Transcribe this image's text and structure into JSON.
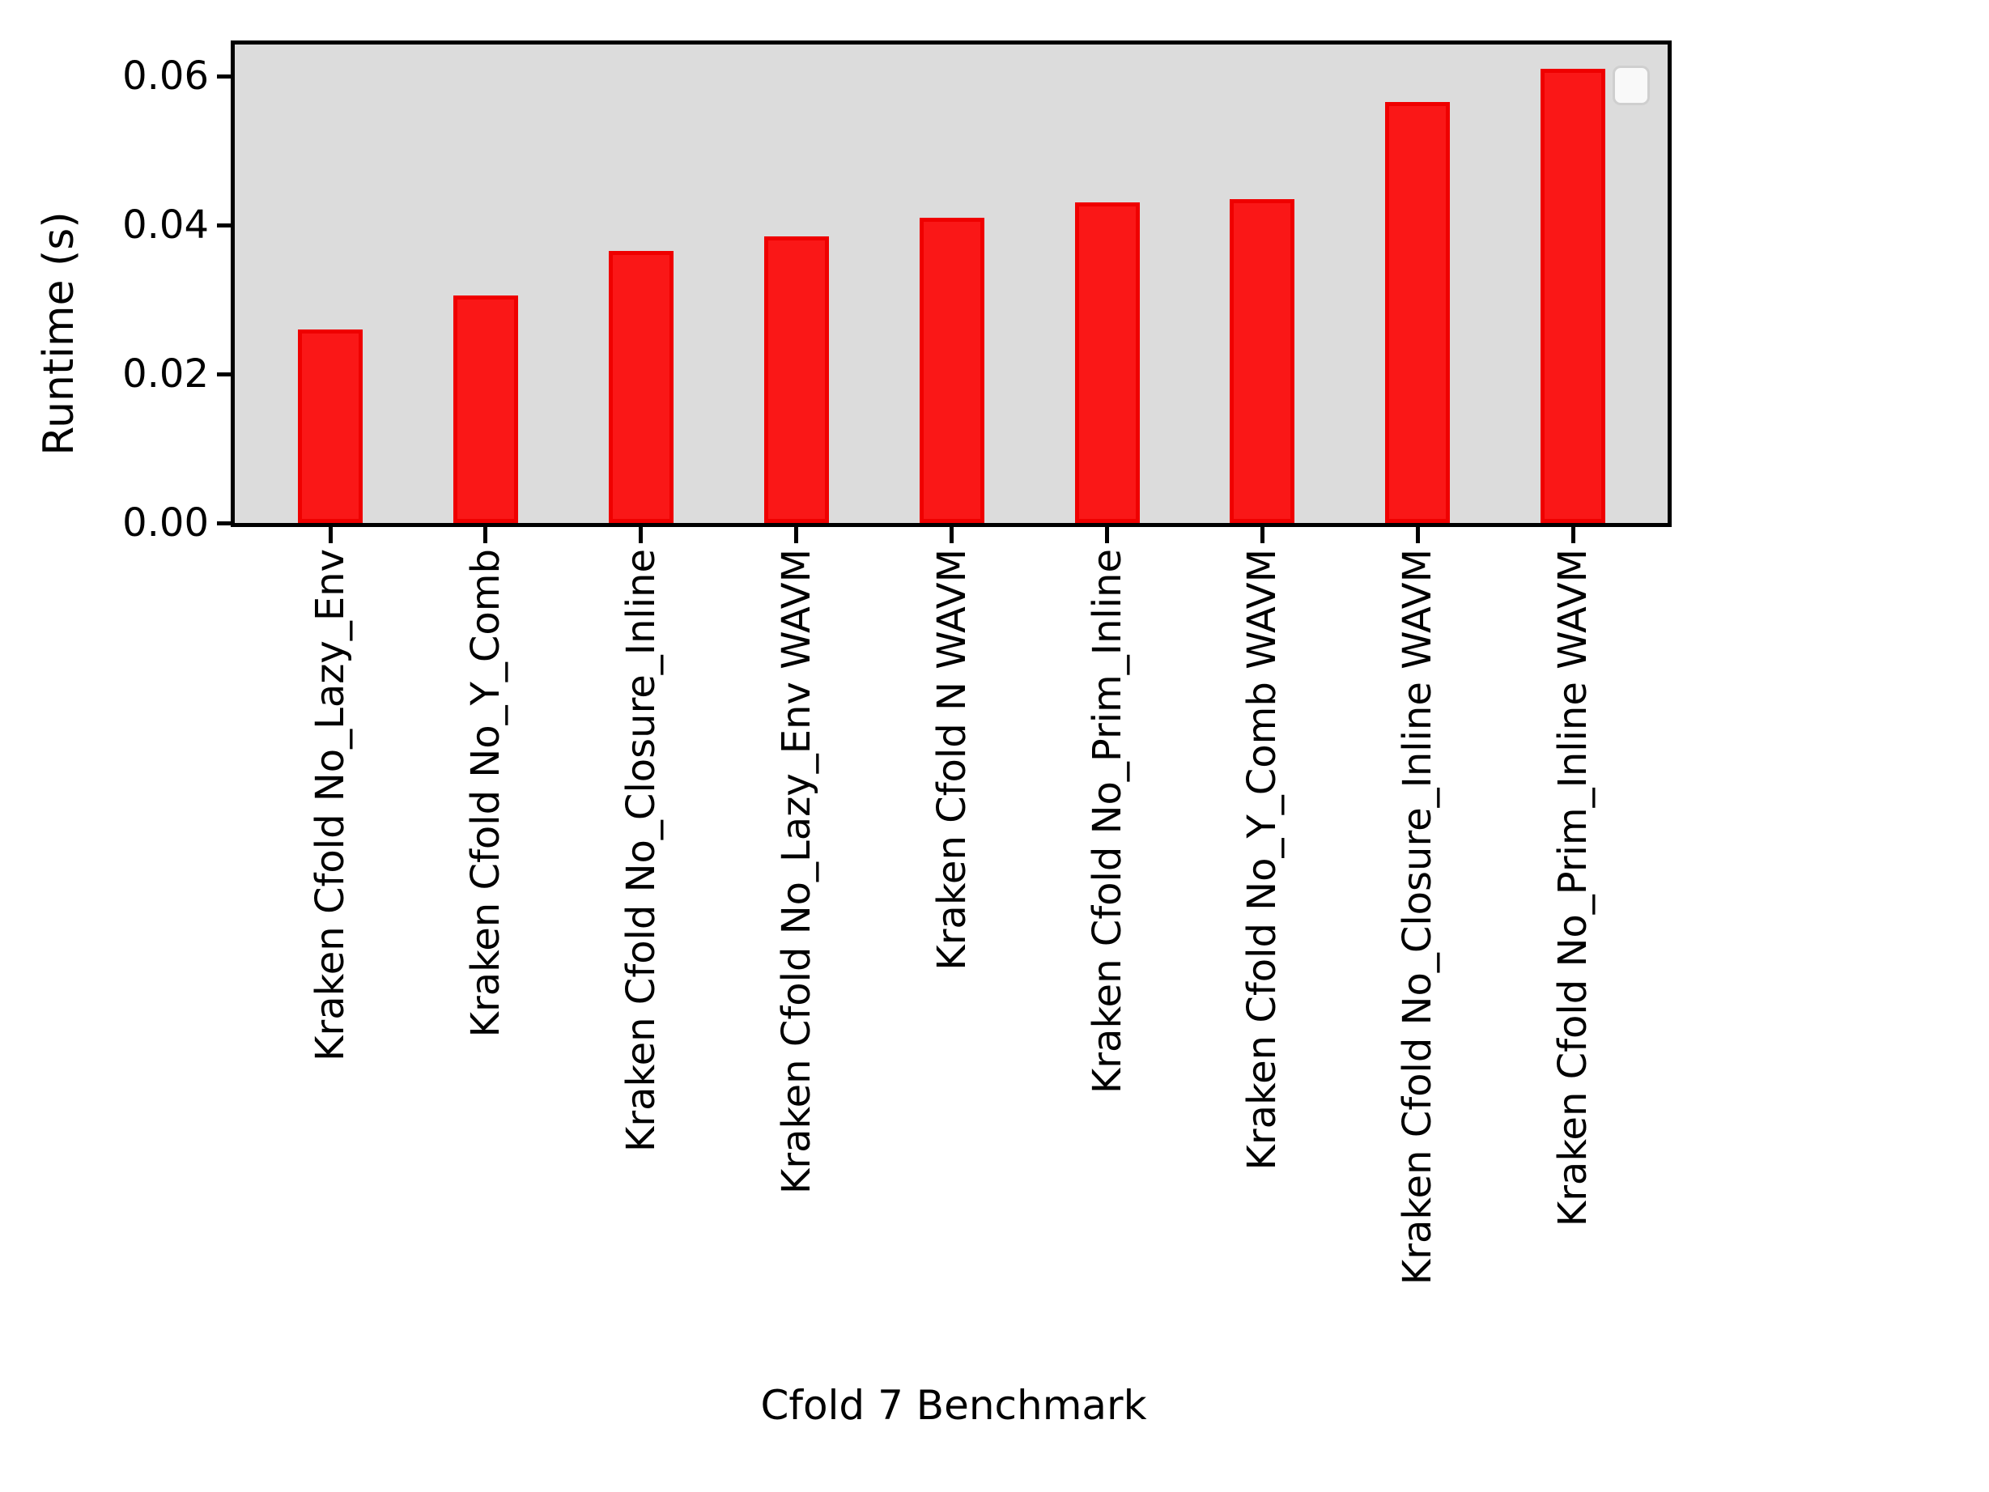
{
  "chart_data": {
    "type": "bar",
    "title": "",
    "xlabel": "Cfold 7 Benchmark",
    "ylabel": "Runtime (s)",
    "categories": [
      "Kraken Cfold No_Lazy_Env",
      "Kraken Cfold No_Y_Comb",
      "Kraken Cfold No_Closure_Inline",
      "Kraken Cfold No_Lazy_Env WAVM",
      "Kraken Cfold N WAVM",
      "Kraken Cfold No_Prim_Inline",
      "Kraken Cfold No_Y_Comb WAVM",
      "Kraken Cfold No_Closure_Inline WAVM",
      "Kraken Cfold No_Prim_Inline WAVM"
    ],
    "values": [
      0.026,
      0.0305,
      0.0365,
      0.0385,
      0.041,
      0.043,
      0.0435,
      0.0565,
      0.061
    ],
    "ytick_labels": [
      "0.00",
      "0.02",
      "0.04",
      "0.06"
    ],
    "ytick_values": [
      0.0,
      0.02,
      0.04,
      0.06
    ],
    "ylim": [
      0,
      0.0643
    ],
    "grid": false,
    "legend": {
      "visible": true,
      "entries": [],
      "position": "upper right"
    },
    "colors": {
      "bar_fill": "#fa1717",
      "bar_edge": "#ef0000",
      "plot_background": "#dcdcdc",
      "figure_background": "#ffffff",
      "spine": "#000000",
      "text": "#000000",
      "legend_fill": "#f9f9f9",
      "legend_edge": "#cfcfcf"
    },
    "x_tick_rotation_deg": 90
  }
}
